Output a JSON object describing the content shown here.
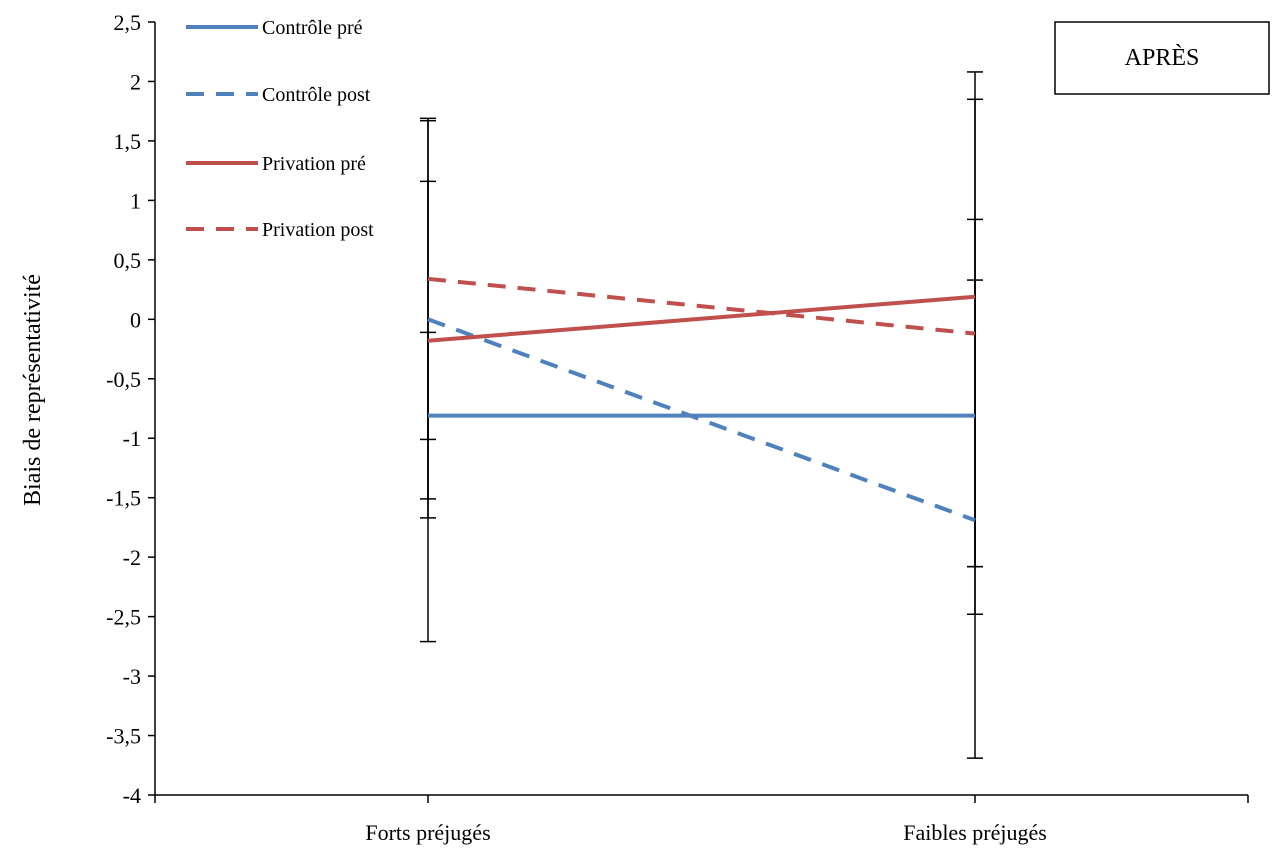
{
  "chart_data": {
    "type": "line",
    "title": "",
    "xlabel": "",
    "ylabel": "Biais de représentativité",
    "categories": [
      "Forts préjugés",
      "Faibles préjugés"
    ],
    "ylim": [
      -4,
      2.5
    ],
    "yticks": [
      2.5,
      2,
      1.5,
      1,
      0.5,
      0,
      -0.5,
      -1,
      -1.5,
      -2,
      -2.5,
      -3,
      -3.5,
      -4
    ],
    "ytick_labels": [
      "2,5",
      "2",
      "1,5",
      "1",
      "0,5",
      "0",
      "-0,5",
      "-1",
      "-1,5",
      "-2",
      "-2,5",
      "-3",
      "-3,5",
      "-4"
    ],
    "grid": false,
    "legend_position": "top-left",
    "annotation": "APRÈS",
    "series": [
      {
        "name": "Contrôle pré",
        "values": [
          -0.81,
          -0.81
        ],
        "color": "#4F81BD",
        "dash": "solid",
        "error_low": [
          -1.51,
          -2.08
        ],
        "error_high": [
          -0.11,
          0.33
        ]
      },
      {
        "name": "Contrôle post",
        "values": [
          0.0,
          -1.69
        ],
        "color": "#4F81BD",
        "dash": "dashed",
        "error_low": [
          -1.67,
          -3.69
        ],
        "error_high": [
          1.67,
          0.84
        ]
      },
      {
        "name": "Privation pré",
        "values": [
          -0.18,
          0.19
        ],
        "color": "#C0504D",
        "dash": "solid",
        "error_low": [
          -1.01,
          -2.48
        ],
        "error_high": [
          1.16,
          1.85
        ]
      },
      {
        "name": "Privation post",
        "values": [
          0.34,
          -0.12
        ],
        "color": "#C0504D",
        "dash": "dashed",
        "error_low": [
          -2.71,
          -2.08
        ],
        "error_high": [
          1.69,
          2.08
        ]
      }
    ]
  }
}
